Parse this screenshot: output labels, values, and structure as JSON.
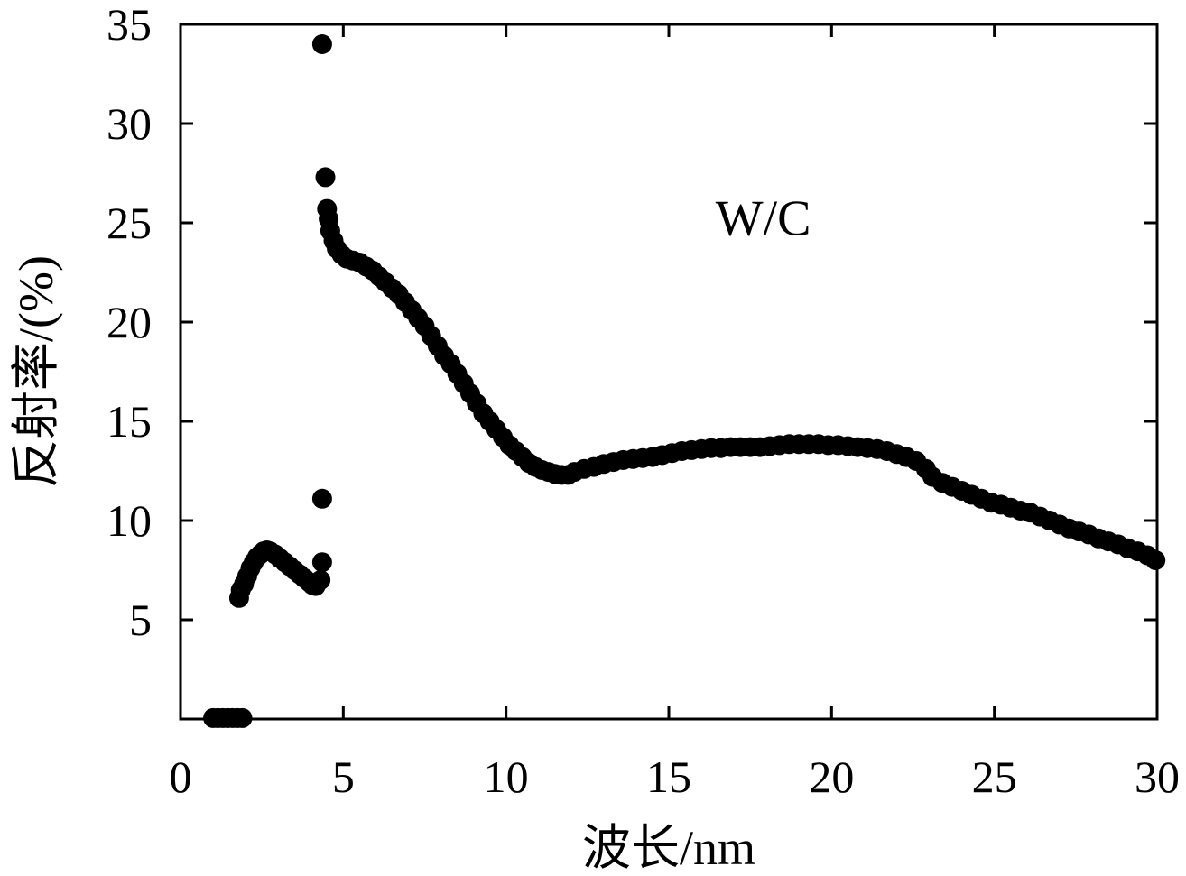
{
  "chart_data": {
    "type": "scatter",
    "title": "",
    "xlabel": "波长/nm",
    "ylabel": "反射率/(%)",
    "xlim": [
      0,
      30
    ],
    "ylim": [
      0,
      35
    ],
    "xticks": [
      0,
      5,
      10,
      15,
      20,
      25,
      30
    ],
    "yticks": [
      5,
      10,
      15,
      20,
      25,
      30,
      35
    ],
    "grid": false,
    "annotations": [
      {
        "text": "W/C",
        "x": 17.9,
        "y": 25.3
      }
    ],
    "marker_color": "#000000",
    "series": [
      {
        "points": [
          [
            1.0,
            0.05
          ],
          [
            1.15,
            0.05
          ],
          [
            1.3,
            0.05
          ],
          [
            1.45,
            0.05
          ],
          [
            1.6,
            0.05
          ],
          [
            1.75,
            0.05
          ],
          [
            1.9,
            0.05
          ],
          [
            1.8,
            6.1
          ],
          [
            1.85,
            6.5
          ],
          [
            1.95,
            6.8
          ],
          [
            2.05,
            7.2
          ],
          [
            2.15,
            7.6
          ],
          [
            2.25,
            7.9
          ],
          [
            2.35,
            8.15
          ],
          [
            2.45,
            8.3
          ],
          [
            2.55,
            8.45
          ],
          [
            2.65,
            8.5
          ],
          [
            2.75,
            8.45
          ],
          [
            2.9,
            8.3
          ],
          [
            3.05,
            8.1
          ],
          [
            3.2,
            7.9
          ],
          [
            3.35,
            7.7
          ],
          [
            3.5,
            7.5
          ],
          [
            3.65,
            7.3
          ],
          [
            3.8,
            7.1
          ],
          [
            3.95,
            6.9
          ],
          [
            4.05,
            6.75
          ],
          [
            4.15,
            6.7
          ],
          [
            4.3,
            7.0
          ],
          [
            4.35,
            7.9
          ],
          [
            4.35,
            11.1
          ],
          [
            4.35,
            34.0
          ],
          [
            4.45,
            27.3
          ],
          [
            4.5,
            25.7
          ],
          [
            4.55,
            25.2
          ],
          [
            4.6,
            24.6
          ],
          [
            4.7,
            24.1
          ],
          [
            4.8,
            23.7
          ],
          [
            4.95,
            23.4
          ],
          [
            5.1,
            23.2
          ],
          [
            5.3,
            23.1
          ],
          [
            5.5,
            23.0
          ],
          [
            5.7,
            22.8
          ],
          [
            5.9,
            22.6
          ],
          [
            6.1,
            22.3
          ],
          [
            6.3,
            22.0
          ],
          [
            6.5,
            21.7
          ],
          [
            6.7,
            21.4
          ],
          [
            6.9,
            21.0
          ],
          [
            7.1,
            20.6
          ],
          [
            7.3,
            20.2
          ],
          [
            7.5,
            19.8
          ],
          [
            7.7,
            19.3
          ],
          [
            7.9,
            18.8
          ],
          [
            8.1,
            18.3
          ],
          [
            8.3,
            17.9
          ],
          [
            8.5,
            17.4
          ],
          [
            8.7,
            16.9
          ],
          [
            8.9,
            16.4
          ],
          [
            9.1,
            15.9
          ],
          [
            9.3,
            15.4
          ],
          [
            9.5,
            15.0
          ],
          [
            9.7,
            14.6
          ],
          [
            9.9,
            14.2
          ],
          [
            10.1,
            13.8
          ],
          [
            10.3,
            13.5
          ],
          [
            10.5,
            13.2
          ],
          [
            10.7,
            12.9
          ],
          [
            10.9,
            12.7
          ],
          [
            11.1,
            12.55
          ],
          [
            11.3,
            12.45
          ],
          [
            11.5,
            12.35
          ],
          [
            11.7,
            12.3
          ],
          [
            11.9,
            12.3
          ],
          [
            12.1,
            12.45
          ],
          [
            12.4,
            12.6
          ],
          [
            12.7,
            12.7
          ],
          [
            13.0,
            12.85
          ],
          [
            13.3,
            12.95
          ],
          [
            13.6,
            13.05
          ],
          [
            13.9,
            13.1
          ],
          [
            14.2,
            13.15
          ],
          [
            14.5,
            13.2
          ],
          [
            14.8,
            13.3
          ],
          [
            15.1,
            13.4
          ],
          [
            15.4,
            13.5
          ],
          [
            15.7,
            13.55
          ],
          [
            16.0,
            13.6
          ],
          [
            16.3,
            13.65
          ],
          [
            16.6,
            13.65
          ],
          [
            16.9,
            13.7
          ],
          [
            17.2,
            13.7
          ],
          [
            17.5,
            13.7
          ],
          [
            17.8,
            13.7
          ],
          [
            18.1,
            13.75
          ],
          [
            18.4,
            13.8
          ],
          [
            18.7,
            13.85
          ],
          [
            19.0,
            13.85
          ],
          [
            19.3,
            13.85
          ],
          [
            19.6,
            13.85
          ],
          [
            19.9,
            13.8
          ],
          [
            20.2,
            13.8
          ],
          [
            20.5,
            13.75
          ],
          [
            20.8,
            13.7
          ],
          [
            21.1,
            13.65
          ],
          [
            21.4,
            13.6
          ],
          [
            21.7,
            13.5
          ],
          [
            22.0,
            13.35
          ],
          [
            22.3,
            13.2
          ],
          [
            22.6,
            13.0
          ],
          [
            22.9,
            12.6
          ],
          [
            23.1,
            12.2
          ],
          [
            23.4,
            11.9
          ],
          [
            23.7,
            11.7
          ],
          [
            24.0,
            11.5
          ],
          [
            24.3,
            11.3
          ],
          [
            24.6,
            11.1
          ],
          [
            24.9,
            10.9
          ],
          [
            25.2,
            10.8
          ],
          [
            25.5,
            10.65
          ],
          [
            25.8,
            10.5
          ],
          [
            26.1,
            10.4
          ],
          [
            26.4,
            10.2
          ],
          [
            26.7,
            10.0
          ],
          [
            27.0,
            9.8
          ],
          [
            27.3,
            9.6
          ],
          [
            27.6,
            9.45
          ],
          [
            27.9,
            9.3
          ],
          [
            28.2,
            9.1
          ],
          [
            28.5,
            8.95
          ],
          [
            28.8,
            8.8
          ],
          [
            29.1,
            8.6
          ],
          [
            29.4,
            8.45
          ],
          [
            29.7,
            8.25
          ],
          [
            29.95,
            8.0
          ]
        ]
      }
    ]
  }
}
